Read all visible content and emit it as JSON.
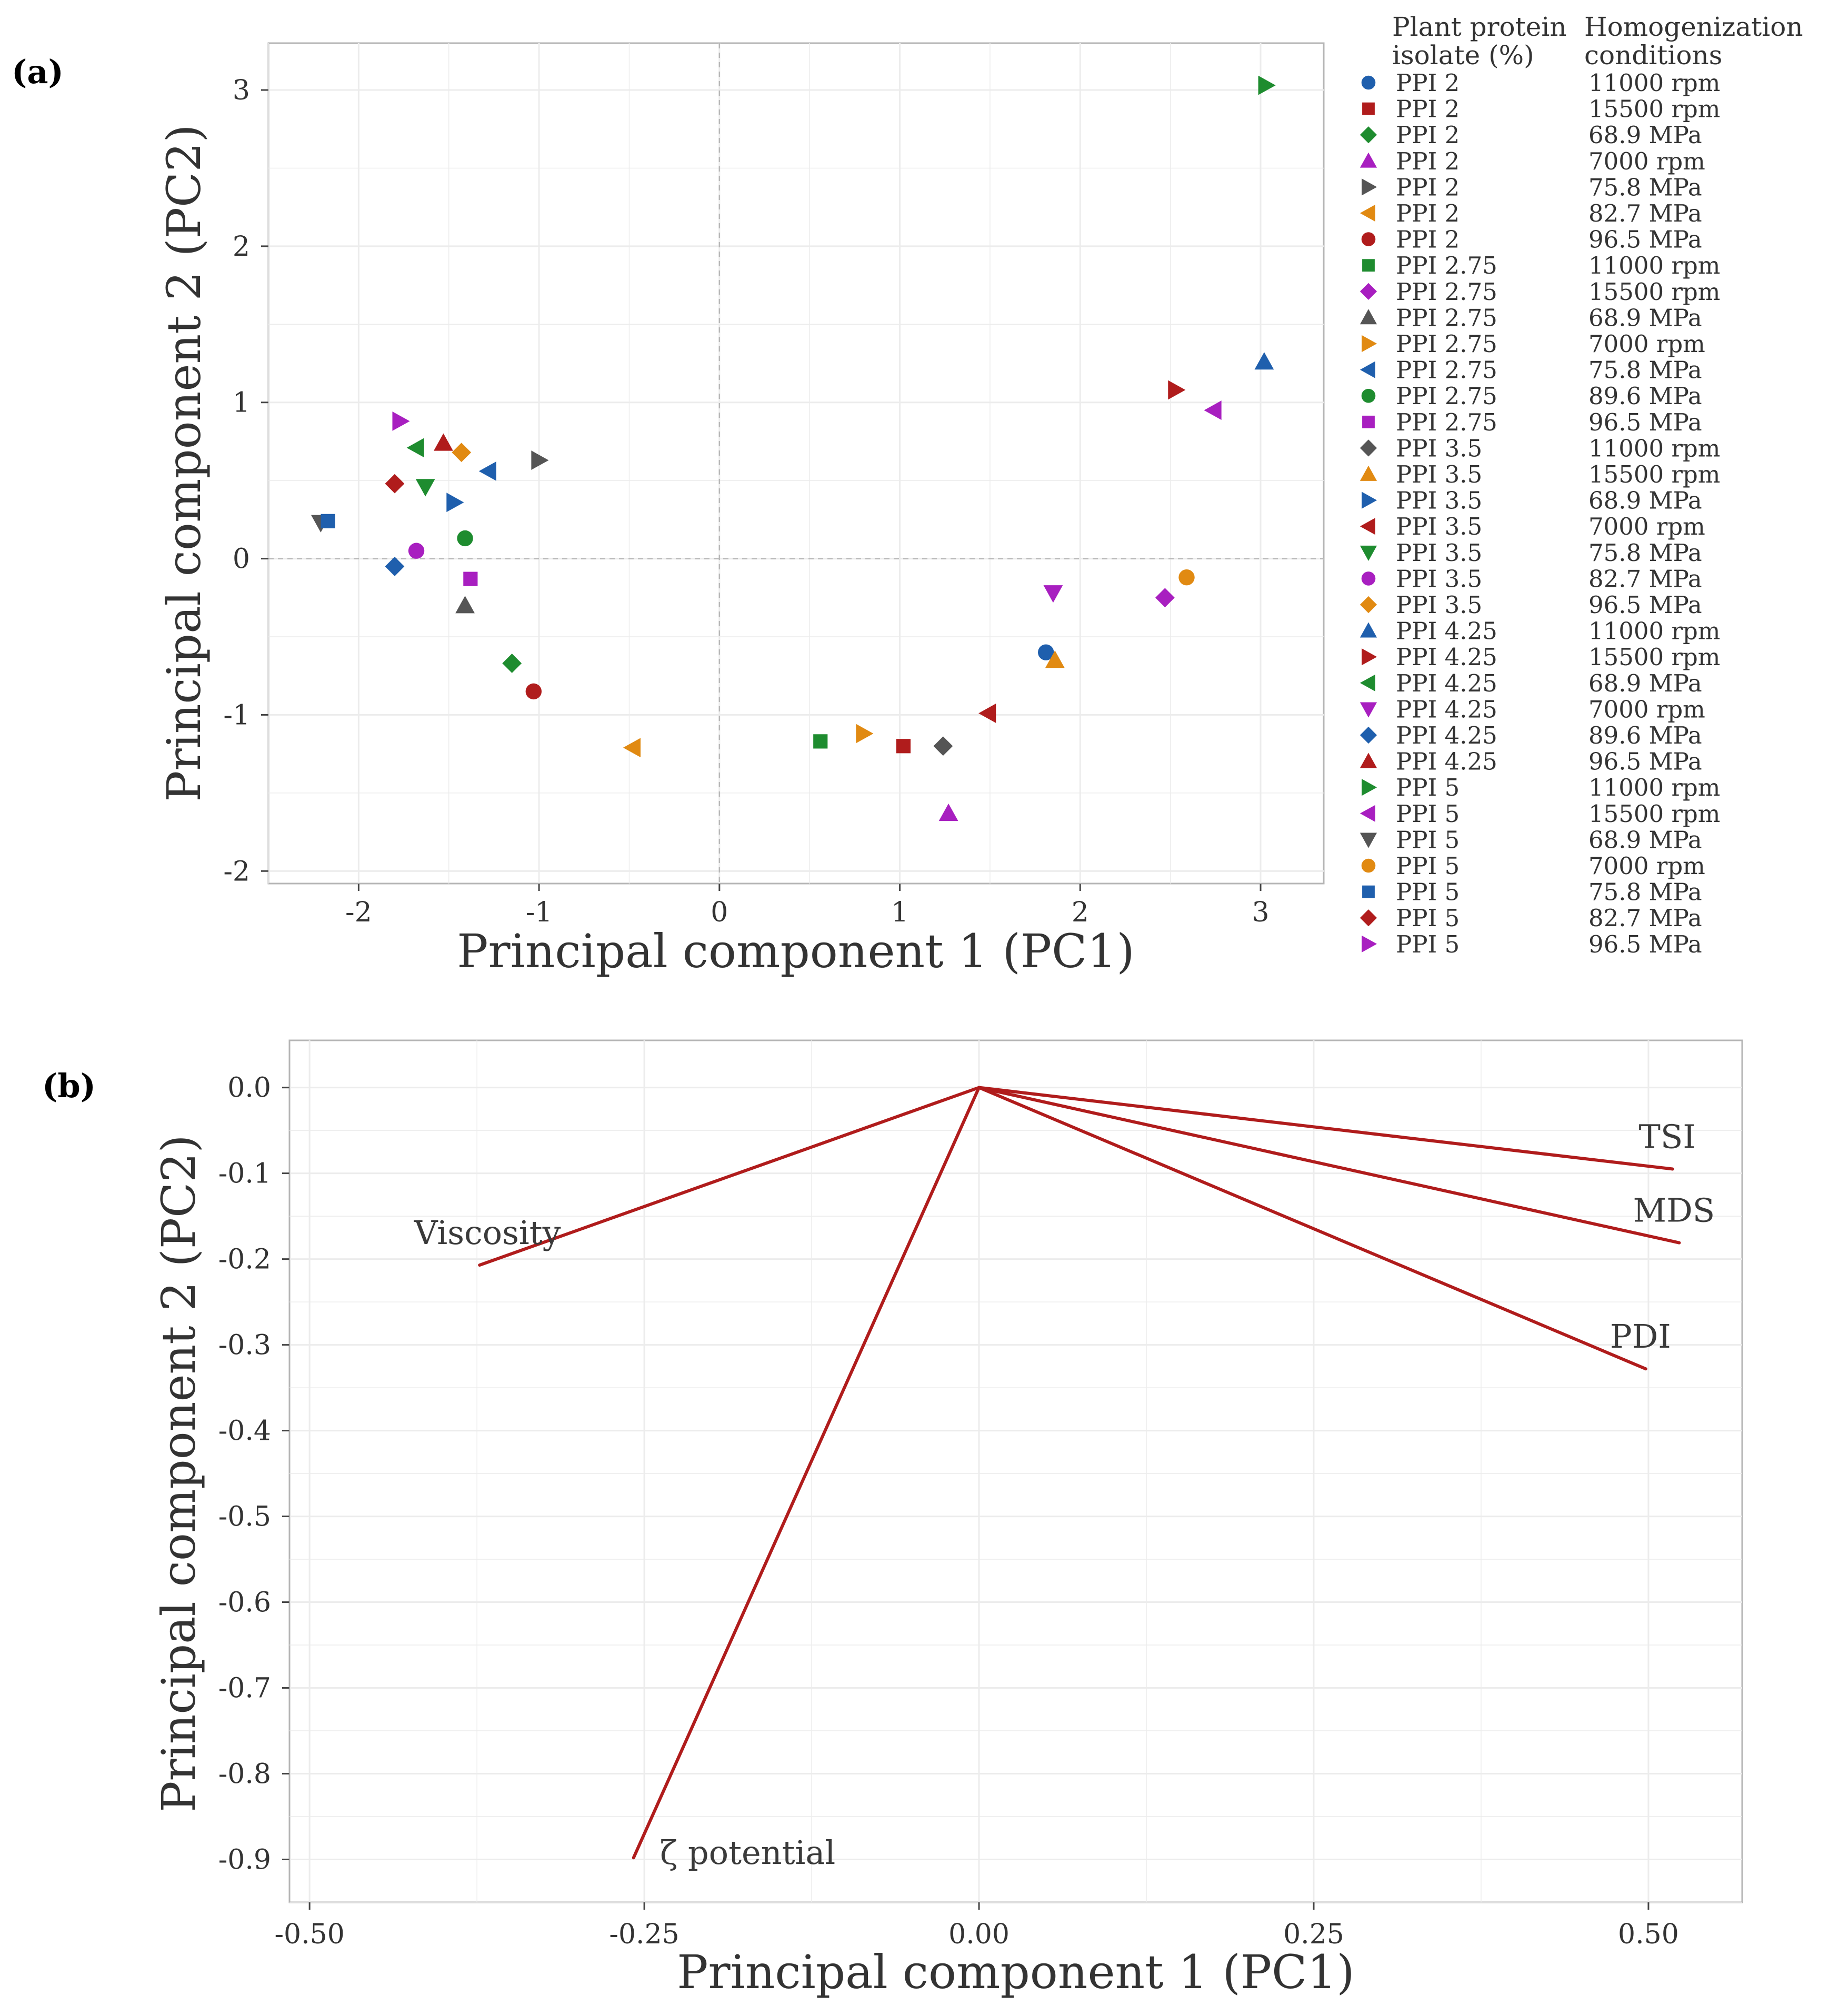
{
  "chart_data": [
    {
      "panel_label": "(a)",
      "type": "scatter",
      "title": "",
      "xlabel": "Principal component 1 (PC1)",
      "ylabel": "Principal component 2 (PC2)",
      "xlim": [
        -2.5,
        3.35
      ],
      "ylim": [
        -2.08,
        3.3
      ],
      "xticks": [
        -2,
        -1,
        0,
        1,
        2,
        3
      ],
      "yticks": [
        -2,
        -1,
        0,
        1,
        2,
        3
      ],
      "xtick_labels": [
        "-2",
        "-1",
        "0",
        "1",
        "2",
        "3"
      ],
      "ytick_labels": [
        "-2",
        "-1",
        "0",
        "1",
        "2",
        "3"
      ],
      "reference_lines": {
        "x": 0,
        "y": 0
      },
      "legend": {
        "placement": "right",
        "header_isolate": [
          "Plant protein",
          "isolate (%)"
        ],
        "header_conditions": [
          "Homogenization",
          "conditions"
        ]
      },
      "series": [
        {
          "isolate": "PPI 2",
          "condition": "11000 rpm",
          "shape": "circle",
          "color": "#1f5fad",
          "x": 1.81,
          "y": -0.6
        },
        {
          "isolate": "PPI 2",
          "condition": "15500 rpm",
          "shape": "square",
          "color": "#b01c1c",
          "x": 1.02,
          "y": -1.2
        },
        {
          "isolate": "PPI 2",
          "condition": "68.9 MPa",
          "shape": "diamond",
          "color": "#1e8c2f",
          "x": -1.15,
          "y": -0.67
        },
        {
          "isolate": "PPI 2",
          "condition": "7000 rpm",
          "shape": "triangle-up",
          "color": "#a81fc0",
          "x": 1.27,
          "y": -1.63
        },
        {
          "isolate": "PPI 2",
          "condition": "75.8 MPa",
          "shape": "triangle-right",
          "color": "#555555",
          "x": -1.0,
          "y": 0.63
        },
        {
          "isolate": "PPI 2",
          "condition": "82.7 MPa",
          "shape": "triangle-left",
          "color": "#e18a12",
          "x": -0.48,
          "y": -1.21
        },
        {
          "isolate": "PPI 2",
          "condition": "96.5 MPa",
          "shape": "circle",
          "color": "#b01c1c",
          "x": -1.03,
          "y": -0.85
        },
        {
          "isolate": "PPI 2.75",
          "condition": "11000 rpm",
          "shape": "square",
          "color": "#1e8c2f",
          "x": 0.56,
          "y": -1.17
        },
        {
          "isolate": "PPI 2.75",
          "condition": "15500 rpm",
          "shape": "diamond",
          "color": "#a81fc0",
          "x": 2.47,
          "y": -0.25
        },
        {
          "isolate": "PPI 2.75",
          "condition": "68.9 MPa",
          "shape": "triangle-up",
          "color": "#555555",
          "x": -1.41,
          "y": -0.3
        },
        {
          "isolate": "PPI 2.75",
          "condition": "7000 rpm",
          "shape": "triangle-right",
          "color": "#e18a12",
          "x": 0.8,
          "y": -1.12
        },
        {
          "isolate": "PPI 2.75",
          "condition": "75.8 MPa",
          "shape": "triangle-left",
          "color": "#1f5fad",
          "x": -1.28,
          "y": 0.56
        },
        {
          "isolate": "PPI 2.75",
          "condition": "89.6 MPa",
          "shape": "circle",
          "color": "#1e8c2f",
          "x": -1.41,
          "y": 0.13
        },
        {
          "isolate": "PPI 2.75",
          "condition": "96.5 MPa",
          "shape": "square",
          "color": "#a81fc0",
          "x": -1.38,
          "y": -0.13
        },
        {
          "isolate": "PPI 3.5",
          "condition": "11000 rpm",
          "shape": "diamond",
          "color": "#555555",
          "x": 1.24,
          "y": -1.2
        },
        {
          "isolate": "PPI 3.5",
          "condition": "15500 rpm",
          "shape": "triangle-up",
          "color": "#e18a12",
          "x": 1.86,
          "y": -0.65
        },
        {
          "isolate": "PPI 3.5",
          "condition": "68.9 MPa",
          "shape": "triangle-right",
          "color": "#1f5fad",
          "x": -1.47,
          "y": 0.36
        },
        {
          "isolate": "PPI 3.5",
          "condition": "7000 rpm",
          "shape": "triangle-left",
          "color": "#b01c1c",
          "x": 1.49,
          "y": -0.99
        },
        {
          "isolate": "PPI 3.5",
          "condition": "75.8 MPa",
          "shape": "triangle-down",
          "color": "#1e8c2f",
          "x": -1.63,
          "y": 0.46
        },
        {
          "isolate": "PPI 3.5",
          "condition": "82.7 MPa",
          "shape": "circle",
          "color": "#a81fc0",
          "x": -1.68,
          "y": 0.05
        },
        {
          "isolate": "PPI 3.5",
          "condition": "96.5 MPa",
          "shape": "diamond",
          "color": "#e18a12",
          "x": -1.43,
          "y": 0.68
        },
        {
          "isolate": "PPI 4.25",
          "condition": "11000 rpm",
          "shape": "triangle-up",
          "color": "#1f5fad",
          "x": 3.02,
          "y": 1.26
        },
        {
          "isolate": "PPI 4.25",
          "condition": "15500 rpm",
          "shape": "triangle-right",
          "color": "#b01c1c",
          "x": 2.53,
          "y": 1.08
        },
        {
          "isolate": "PPI 4.25",
          "condition": "68.9 MPa",
          "shape": "triangle-left",
          "color": "#1e8c2f",
          "x": -1.68,
          "y": 0.71
        },
        {
          "isolate": "PPI 4.25",
          "condition": "7000 rpm",
          "shape": "triangle-down",
          "color": "#a81fc0",
          "x": 1.85,
          "y": -0.22
        },
        {
          "isolate": "PPI 4.25",
          "condition": "89.6 MPa",
          "shape": "diamond",
          "color": "#1f5fad",
          "x": -1.8,
          "y": -0.05
        },
        {
          "isolate": "PPI 4.25",
          "condition": "96.5 MPa",
          "shape": "triangle-up",
          "color": "#b01c1c",
          "x": -1.53,
          "y": 0.74
        },
        {
          "isolate": "PPI 5",
          "condition": "11000 rpm",
          "shape": "triangle-right",
          "color": "#1e8c2f",
          "x": 3.03,
          "y": 3.03
        },
        {
          "isolate": "PPI 5",
          "condition": "15500 rpm",
          "shape": "triangle-left",
          "color": "#a81fc0",
          "x": 2.74,
          "y": 0.95
        },
        {
          "isolate": "PPI 5",
          "condition": "68.9 MPa",
          "shape": "triangle-down",
          "color": "#555555",
          "x": -2.21,
          "y": 0.23
        },
        {
          "isolate": "PPI 5",
          "condition": "7000 rpm",
          "shape": "circle",
          "color": "#e18a12",
          "x": 2.59,
          "y": -0.12
        },
        {
          "isolate": "PPI 5",
          "condition": "75.8 MPa",
          "shape": "square",
          "color": "#1f5fad",
          "x": -2.17,
          "y": 0.24
        },
        {
          "isolate": "PPI 5",
          "condition": "82.7 MPa",
          "shape": "diamond",
          "color": "#b01c1c",
          "x": -1.8,
          "y": 0.48
        },
        {
          "isolate": "PPI 5",
          "condition": "96.5 MPa",
          "shape": "triangle-right",
          "color": "#a81fc0",
          "x": -1.77,
          "y": 0.88
        }
      ]
    },
    {
      "panel_label": "(b)",
      "type": "line",
      "subtype": "loading-vectors",
      "title": "",
      "xlabel": "Principal component 1 (PC1)",
      "ylabel": "Principal component 2 (PC2)",
      "xlim": [
        -0.515,
        0.57
      ],
      "ylim": [
        -0.95,
        0.055
      ],
      "xticks": [
        -0.5,
        -0.25,
        0,
        0.25,
        0.5
      ],
      "xtick_labels": [
        "-0.50",
        "-0.25",
        "0.00",
        "0.25",
        "0.50"
      ],
      "yticks": [
        0,
        -0.1,
        -0.2,
        -0.3,
        -0.4,
        -0.5,
        -0.6,
        -0.7,
        -0.8,
        -0.9
      ],
      "ytick_labels": [
        "0.0",
        "-0.1",
        "-0.2",
        "-0.3",
        "-0.4",
        "-0.5",
        "-0.6",
        "-0.7",
        "-0.8",
        "-0.9"
      ],
      "color": "#b01c1c",
      "vectors": [
        {
          "name": "TSI",
          "x": 0.518,
          "y": -0.095,
          "label_anchor": "end-above"
        },
        {
          "name": "MDS",
          "x": 0.523,
          "y": -0.181,
          "label_anchor": "end-above"
        },
        {
          "name": "PDI",
          "x": 0.498,
          "y": -0.328,
          "label_anchor": "end-above"
        },
        {
          "name": "Viscosity",
          "x": -0.373,
          "y": -0.207,
          "label_anchor": "start-above"
        },
        {
          "name": "ζ potential",
          "x": -0.258,
          "y": -0.898,
          "label_anchor": "start-right"
        }
      ]
    }
  ]
}
